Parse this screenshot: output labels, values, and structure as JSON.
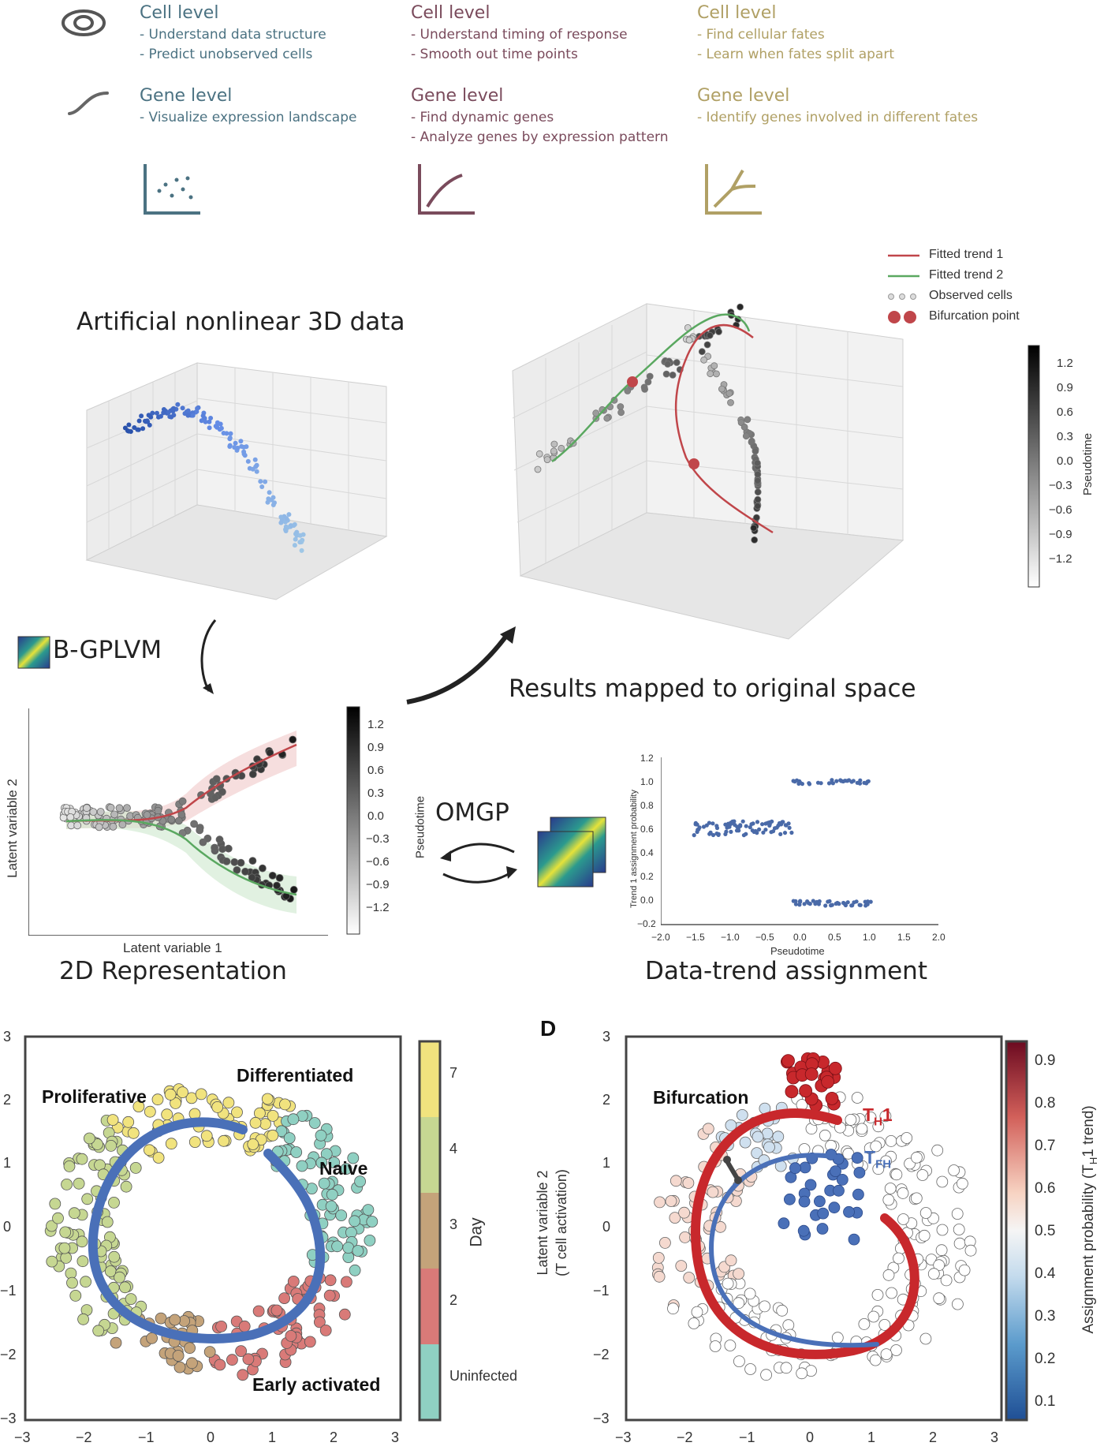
{
  "top": {
    "columns": [
      {
        "cell_title": "Cell level",
        "cell_items": [
          "- Understand data structure",
          "- Predict unobserved cells"
        ],
        "gene_title": "Gene level",
        "gene_items": [
          "- Visualize expression landscape"
        ]
      },
      {
        "cell_title": "Cell level",
        "cell_items": [
          "- Understand timing of response",
          "- Smooth out time points"
        ],
        "gene_title": "Gene level",
        "gene_items": [
          "- Find dynamic genes",
          "- Analyze genes by expression pattern"
        ]
      },
      {
        "cell_title": "Cell level",
        "cell_items": [
          "- Find cellular fates",
          "- Learn when fates split apart"
        ],
        "gene_title": "Gene level",
        "gene_items": [
          "- Identify genes involved in different fates"
        ]
      }
    ],
    "colors": [
      "#4b7282",
      "#7a4b5c",
      "#b0a065"
    ],
    "icons": [
      "eye-icon",
      "curve-icon",
      "scatter-icon",
      "trend-icon",
      "branch-icon"
    ]
  },
  "workflow": {
    "artificial_title": "Artificial nonlinear 3D data",
    "bgplvm_label": "B-GPLVM",
    "results_label": "Results mapped to original space",
    "representation_label": "2D Representation",
    "omgp_label": "OMGP",
    "assignment_label": "Data-trend assignment",
    "legend": [
      "Fitted trend 1",
      "Fitted trend 2",
      "Observed cells",
      "Bifurcation point"
    ],
    "pseudotime_label": "Pseudotime",
    "latent1": "Latent variable 1",
    "latent2": "Latent variable 2",
    "colorbar_ticks": [
      "1.2",
      "0.9",
      "0.6",
      "0.3",
      "0.0",
      "−0.3",
      "−0.6",
      "−0.9",
      "−1.2"
    ],
    "assign_plot": {
      "ylabel": "Trend 1 assignment probability",
      "xlabel": "Pseudotime",
      "xticks": [
        "−2.0",
        "−1.5",
        "−1.0",
        "−0.5",
        "0.0",
        "0.5",
        "1.0",
        "1.5",
        "2.0"
      ],
      "yticks": [
        "1.2",
        "1.0",
        "0.8",
        "0.6",
        "0.4",
        "0.2",
        "0.0",
        "−0.2"
      ]
    }
  },
  "bottom": {
    "panel_letter": "D",
    "left": {
      "labels": {
        "proliferative": "Proliferative",
        "differentiated": "Differentiated",
        "naive": "Naive",
        "early": "Early activated"
      },
      "yticks": [
        "3",
        "2",
        "1",
        "0",
        "−1",
        "−2",
        "−3"
      ],
      "xticks": [
        "−3",
        "−2",
        "−1",
        "0",
        "1",
        "2",
        "3"
      ],
      "colorbar_title": "Day",
      "colorbar_ticks": [
        "7",
        "4",
        "3",
        "2",
        "Uninfected"
      ]
    },
    "right": {
      "labels": {
        "bifurcation": "Bifurcation",
        "th1": "T",
        "th1_sub": "H",
        "th1_tail": "1",
        "tfh": "T",
        "tfh_sub": "FH"
      },
      "ylabel": "Latent variable 2",
      "ylabel2": "(T cell activation)",
      "yticks": [
        "3",
        "2",
        "1",
        "0",
        "−1",
        "−2",
        "−3"
      ],
      "xticks": [
        "−3",
        "−2",
        "−1",
        "0",
        "1",
        "2",
        "3"
      ],
      "colorbar_title": "Assignment probability (T",
      "colorbar_title_sub": "H",
      "colorbar_title_tail": "1 trend)",
      "colorbar_ticks": [
        "0.9",
        "0.8",
        "0.7",
        "0.6",
        "0.5",
        "0.4",
        "0.3",
        "0.2",
        "0.1"
      ]
    }
  }
}
